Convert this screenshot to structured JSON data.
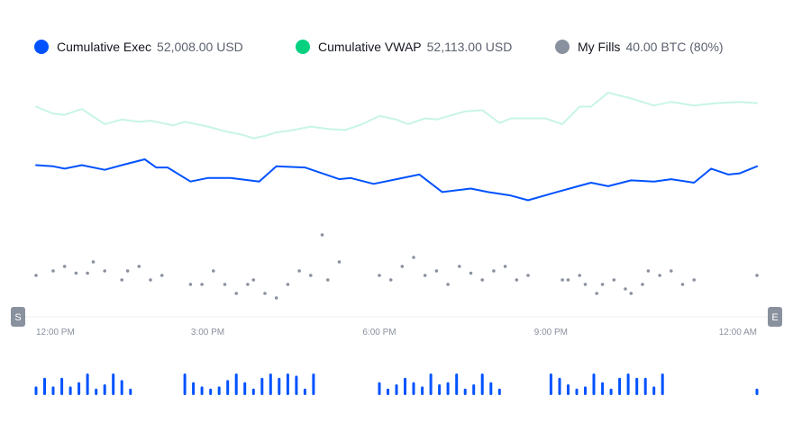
{
  "legend": {
    "exec": {
      "name": "Cumulative Exec",
      "value": "52,008.00 USD",
      "color": "#0052ff"
    },
    "vwap": {
      "name": "Cumulative VWAP",
      "value": "52,113.00 USD",
      "color": "#05d180"
    },
    "fills": {
      "name": "My Fills",
      "value": "40.00 BTC (80%)",
      "color": "#8a919e"
    }
  },
  "handles": {
    "start": "S",
    "end": "E"
  },
  "chart_data": {
    "type": "line",
    "x_tick_labels": [
      "12:00 PM",
      "3:00 PM",
      "6:00 PM",
      "9:00 PM",
      "12:00 AM"
    ],
    "x_ticks_hours": [
      0,
      3,
      6,
      9,
      12
    ],
    "x_range_hours": [
      0,
      12.6
    ],
    "grid": false,
    "series": [
      {
        "name": "Cumulative VWAP",
        "color": "#05d180",
        "x": [
          0,
          0.3,
          0.5,
          0.8,
          1.2,
          1.5,
          1.8,
          2.0,
          2.4,
          2.6,
          3.0,
          3.3,
          3.6,
          3.8,
          4.0,
          4.2,
          4.5,
          4.8,
          5.1,
          5.4,
          5.7,
          6.0,
          6.3,
          6.5,
          6.8,
          7.0,
          7.5,
          7.8,
          8.1,
          8.3,
          8.6,
          8.9,
          9.2,
          9.5,
          9.7,
          10.0,
          10.4,
          10.8,
          11.1,
          11.5,
          11.9,
          12.3,
          12.6
        ],
        "y": [
          55,
          49,
          48,
          53,
          40,
          44,
          42,
          43,
          39,
          42,
          38,
          34,
          31,
          28,
          30,
          33,
          35,
          38,
          36,
          35,
          40,
          47,
          44,
          40,
          45,
          44,
          51,
          52,
          41,
          45,
          45,
          45,
          40,
          55,
          55,
          67,
          62,
          56,
          59,
          56,
          58,
          59,
          58
        ]
      },
      {
        "name": "Cumulative Exec",
        "color": "#0052ff",
        "x": [
          0,
          0.3,
          0.5,
          0.8,
          1.2,
          1.5,
          1.9,
          2.1,
          2.3,
          2.7,
          3.0,
          3.4,
          3.9,
          4.2,
          4.7,
          5.0,
          5.3,
          5.5,
          5.9,
          6.3,
          6.7,
          7.1,
          7.6,
          7.9,
          8.3,
          8.6,
          9.1,
          9.7,
          10.0,
          10.4,
          10.8,
          11.1,
          11.5,
          11.8,
          12.1,
          12.3,
          12.6
        ],
        "y": [
          5,
          4,
          2,
          5,
          1,
          5,
          10,
          3,
          3,
          -9,
          -6,
          -6,
          -9,
          4,
          3,
          -2,
          -7,
          -6,
          -11,
          -7,
          -3,
          -18,
          -15,
          -18,
          -21,
          -25,
          -18,
          -10,
          -13,
          -8,
          -9,
          -7,
          -10,
          2,
          -3,
          -2,
          4
        ]
      }
    ],
    "fills": {
      "name": "My Fills",
      "color": "#8a919e",
      "points": [
        [
          0,
          0
        ],
        [
          0.3,
          1
        ],
        [
          0.5,
          2
        ],
        [
          0.7,
          0.5
        ],
        [
          0.9,
          0.5
        ],
        [
          1.0,
          3
        ],
        [
          1.2,
          1
        ],
        [
          1.5,
          -1
        ],
        [
          1.6,
          1
        ],
        [
          1.8,
          2
        ],
        [
          2.0,
          -1
        ],
        [
          2.2,
          0
        ],
        [
          2.7,
          -2
        ],
        [
          2.9,
          -2
        ],
        [
          3.1,
          1
        ],
        [
          3.3,
          -2
        ],
        [
          3.5,
          -4
        ],
        [
          3.7,
          -2
        ],
        [
          3.8,
          -1
        ],
        [
          4.0,
          -4
        ],
        [
          4.2,
          -5
        ],
        [
          4.4,
          -2
        ],
        [
          4.6,
          1
        ],
        [
          4.8,
          0
        ],
        [
          5.0,
          9
        ],
        [
          5.1,
          -1
        ],
        [
          5.3,
          3
        ],
        [
          6.0,
          0
        ],
        [
          6.2,
          -1
        ],
        [
          6.4,
          2
        ],
        [
          6.6,
          4
        ],
        [
          6.8,
          0
        ],
        [
          7.0,
          1
        ],
        [
          7.2,
          -2
        ],
        [
          7.4,
          2
        ],
        [
          7.6,
          0.5
        ],
        [
          7.8,
          -1
        ],
        [
          8.0,
          1
        ],
        [
          8.2,
          2
        ],
        [
          8.4,
          -1
        ],
        [
          8.6,
          0
        ],
        [
          9.2,
          -1
        ],
        [
          9.3,
          -1
        ],
        [
          9.5,
          0
        ],
        [
          9.6,
          -2
        ],
        [
          9.8,
          -4
        ],
        [
          9.9,
          -2
        ],
        [
          10.1,
          -1
        ],
        [
          10.3,
          -3
        ],
        [
          10.4,
          -4
        ],
        [
          10.6,
          -2
        ],
        [
          10.7,
          1
        ],
        [
          10.9,
          0
        ],
        [
          11.1,
          1
        ],
        [
          11.3,
          -2
        ],
        [
          11.5,
          -1
        ],
        [
          12.6,
          0
        ]
      ]
    },
    "volume": {
      "color": "#0052ff",
      "bars": [
        [
          0,
          0.4
        ],
        [
          0.15,
          0.8
        ],
        [
          0.3,
          0.4
        ],
        [
          0.45,
          0.8
        ],
        [
          0.6,
          0.4
        ],
        [
          0.75,
          0.6
        ],
        [
          0.9,
          1
        ],
        [
          1.05,
          0.3
        ],
        [
          1.2,
          0.5
        ],
        [
          1.35,
          1
        ],
        [
          1.5,
          0.7
        ],
        [
          1.65,
          0.3
        ],
        [
          2.6,
          1
        ],
        [
          2.75,
          0.6
        ],
        [
          2.9,
          0.4
        ],
        [
          3.05,
          0.3
        ],
        [
          3.2,
          0.4
        ],
        [
          3.35,
          0.7
        ],
        [
          3.5,
          1
        ],
        [
          3.65,
          0.6
        ],
        [
          3.8,
          0.3
        ],
        [
          3.95,
          0.8
        ],
        [
          4.1,
          1
        ],
        [
          4.25,
          0.8
        ],
        [
          4.4,
          1
        ],
        [
          4.55,
          0.9
        ],
        [
          4.7,
          0.3
        ],
        [
          4.85,
          1
        ],
        [
          6.0,
          0.6
        ],
        [
          6.15,
          0.3
        ],
        [
          6.3,
          0.5
        ],
        [
          6.45,
          0.8
        ],
        [
          6.6,
          0.6
        ],
        [
          6.75,
          0.4
        ],
        [
          6.9,
          1
        ],
        [
          7.05,
          0.5
        ],
        [
          7.2,
          0.6
        ],
        [
          7.35,
          1
        ],
        [
          7.5,
          0.3
        ],
        [
          7.65,
          0.5
        ],
        [
          7.8,
          1
        ],
        [
          7.95,
          0.6
        ],
        [
          8.1,
          0.3
        ],
        [
          9.0,
          1
        ],
        [
          9.15,
          0.8
        ],
        [
          9.3,
          0.5
        ],
        [
          9.45,
          0.3
        ],
        [
          9.6,
          0.4
        ],
        [
          9.75,
          1
        ],
        [
          9.9,
          0.6
        ],
        [
          10.05,
          0.3
        ],
        [
          10.2,
          0.8
        ],
        [
          10.35,
          1
        ],
        [
          10.5,
          0.8
        ],
        [
          10.65,
          0.8
        ],
        [
          10.8,
          0.4
        ],
        [
          10.95,
          1
        ],
        [
          12.6,
          0.3
        ]
      ]
    }
  }
}
